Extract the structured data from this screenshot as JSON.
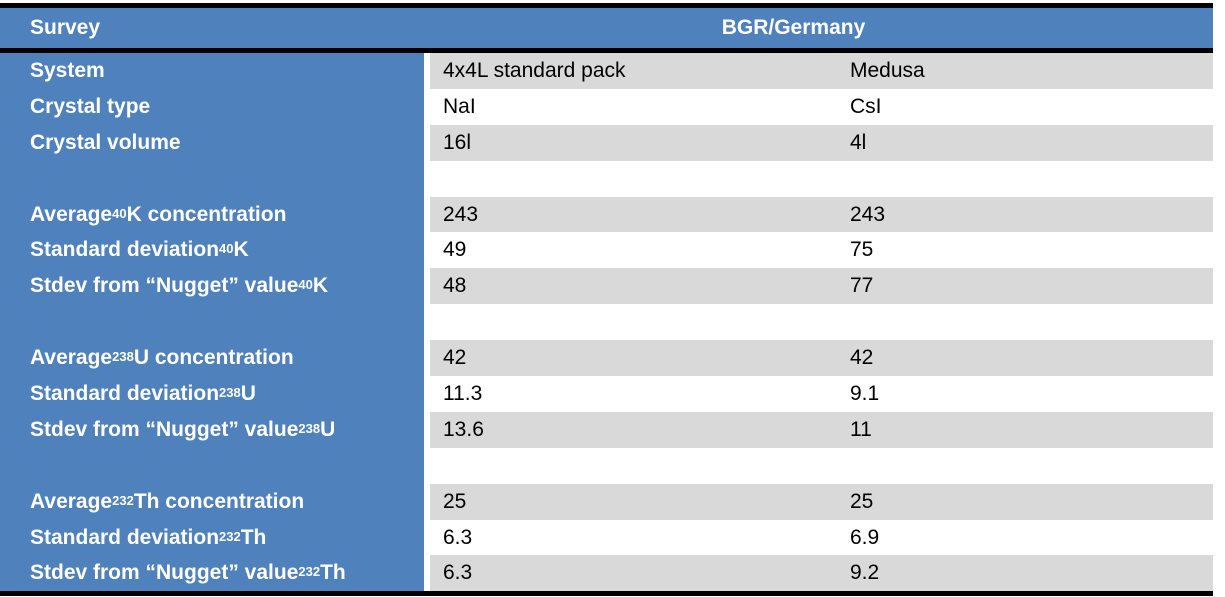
{
  "title": "Gamma-ray survey system comparison table",
  "colors": {
    "header_blue": "#4F81BD",
    "stripe_gray": "#D9D9D9",
    "border_black": "#000000",
    "label_text": "#FFFFFF",
    "value_text": "#000000"
  },
  "header": {
    "survey_label": "Survey",
    "group_label": "BGR/Germany"
  },
  "rows": [
    {
      "label_pre": "System",
      "label_sup": "",
      "label_post": "",
      "col1": "4x4L standard pack",
      "col2": "Medusa"
    },
    {
      "label_pre": "Crystal type",
      "label_sup": "",
      "label_post": "",
      "col1": "NaI",
      "col2": "CsI"
    },
    {
      "label_pre": "Crystal volume",
      "label_sup": "",
      "label_post": "",
      "col1": "16l",
      "col2": "4l"
    },
    {
      "label_pre": "",
      "label_sup": "",
      "label_post": "",
      "col1": "",
      "col2": ""
    },
    {
      "label_pre": "Average ",
      "label_sup": "40",
      "label_post": "K concentration",
      "col1": "243",
      "col2": "243"
    },
    {
      "label_pre": "Standard deviation ",
      "label_sup": "40",
      "label_post": "K",
      "col1": "49",
      "col2": "75"
    },
    {
      "label_pre": "Stdev from “Nugget” value ",
      "label_sup": "40",
      "label_post": "K",
      "col1": "48",
      "col2": "77"
    },
    {
      "label_pre": "",
      "label_sup": "",
      "label_post": "",
      "col1": "",
      "col2": ""
    },
    {
      "label_pre": "Average ",
      "label_sup": "238",
      "label_post": "U concentration",
      "col1": "42",
      "col2": "42"
    },
    {
      "label_pre": "Standard deviation ",
      "label_sup": "238",
      "label_post": "U",
      "col1": "11.3",
      "col2": "9.1"
    },
    {
      "label_pre": "Stdev from “Nugget” value ",
      "label_sup": "238",
      "label_post": "U",
      "col1": "13.6",
      "col2": "11"
    },
    {
      "label_pre": "",
      "label_sup": "",
      "label_post": "",
      "col1": "",
      "col2": ""
    },
    {
      "label_pre": "Average ",
      "label_sup": "232",
      "label_post": "Th concentration",
      "col1": "25",
      "col2": "25"
    },
    {
      "label_pre": "Standard deviation ",
      "label_sup": "232",
      "label_post": "Th",
      "col1": "6.3",
      "col2": "6.9"
    },
    {
      "label_pre": "Stdev from “Nugget” value ",
      "label_sup": "232",
      "label_post": "Th",
      "col1": "6.3",
      "col2": "9.2"
    }
  ]
}
